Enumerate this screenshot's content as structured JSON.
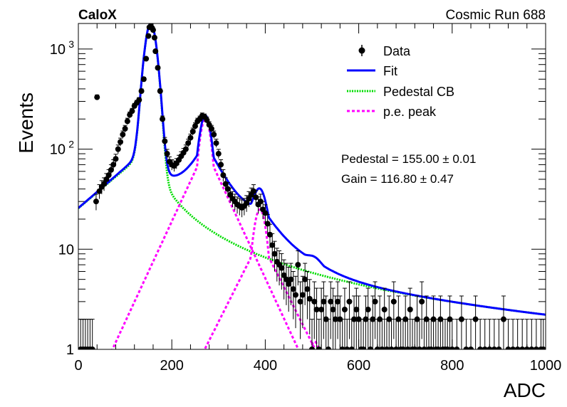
{
  "chart_data": {
    "type": "scatter",
    "experiment": "CaloX",
    "run_label": "Cosmic Run 688",
    "xlabel": "ADC",
    "ylabel": "Events",
    "xlim": [
      0,
      1000
    ],
    "ylim": [
      1,
      1800
    ],
    "yscale": "log",
    "x_ticks": [
      0,
      200,
      400,
      600,
      800,
      1000
    ],
    "y_ticks": [
      {
        "value": 1,
        "label": "1"
      },
      {
        "value": 10,
        "label": "10"
      },
      {
        "value": 100,
        "label": "10",
        "exp": "2"
      },
      {
        "value": 1000,
        "label": "10",
        "exp": "3"
      }
    ],
    "legend": [
      {
        "key": "data",
        "label": "Data"
      },
      {
        "key": "fit",
        "label": "Fit"
      },
      {
        "key": "pedestal",
        "label": "Pedestal CB"
      },
      {
        "key": "pe",
        "label": "p.e. peak"
      }
    ],
    "legend_position": "top-right",
    "results": [
      {
        "label": "Pedestal = 155.00",
        "pm": "±",
        "err": "0.01"
      },
      {
        "label": "Gain = 116.80",
        "pm": "±",
        "err": "0.47"
      }
    ],
    "colors": {
      "data": "#000000",
      "fit": "#0000ff",
      "pedestal": "#00dd00",
      "pe": "#ff00ff"
    },
    "fit_params": {
      "pedestal_mean": 155.0,
      "pedestal_sigma": 11.5,
      "pedestal_amp": 1700,
      "gain": 116.8,
      "peaks": [
        {
          "mean": 271.8,
          "sigma": 12.0,
          "amp": 200
        },
        {
          "mean": 388.6,
          "sigma": 13.0,
          "amp": 25
        },
        {
          "mean": 505.4,
          "sigma": 14.0,
          "amp": 1.2
        }
      ]
    },
    "data_points": [
      [
        5,
        1
      ],
      [
        10,
        1
      ],
      [
        15,
        1
      ],
      [
        20,
        1
      ],
      [
        25,
        1
      ],
      [
        30,
        1
      ],
      [
        38,
        30
      ],
      [
        40,
        330
      ],
      [
        45,
        38
      ],
      [
        50,
        42
      ],
      [
        55,
        45
      ],
      [
        60,
        50
      ],
      [
        65,
        55
      ],
      [
        70,
        62
      ],
      [
        75,
        70
      ],
      [
        80,
        80
      ],
      [
        85,
        100
      ],
      [
        90,
        118
      ],
      [
        95,
        140
      ],
      [
        100,
        160
      ],
      [
        105,
        190
      ],
      [
        110,
        220
      ],
      [
        115,
        240
      ],
      [
        120,
        270
      ],
      [
        125,
        290
      ],
      [
        130,
        310
      ],
      [
        135,
        380
      ],
      [
        140,
        500
      ],
      [
        145,
        800
      ],
      [
        150,
        1350
      ],
      [
        152,
        1650
      ],
      [
        155,
        1700
      ],
      [
        158,
        1620
      ],
      [
        160,
        1550
      ],
      [
        163,
        1300
      ],
      [
        165,
        950
      ],
      [
        170,
        650
      ],
      [
        175,
        380
      ],
      [
        180,
        200
      ],
      [
        185,
        120
      ],
      [
        190,
        90
      ],
      [
        195,
        75
      ],
      [
        200,
        70
      ],
      [
        205,
        68
      ],
      [
        210,
        72
      ],
      [
        215,
        78
      ],
      [
        220,
        85
      ],
      [
        225,
        92
      ],
      [
        230,
        100
      ],
      [
        235,
        115
      ],
      [
        240,
        130
      ],
      [
        245,
        150
      ],
      [
        250,
        170
      ],
      [
        255,
        190
      ],
      [
        260,
        200
      ],
      [
        265,
        215
      ],
      [
        270,
        210
      ],
      [
        275,
        195
      ],
      [
        280,
        175
      ],
      [
        285,
        160
      ],
      [
        290,
        140
      ],
      [
        295,
        115
      ],
      [
        300,
        90
      ],
      [
        305,
        70
      ],
      [
        310,
        55
      ],
      [
        315,
        45
      ],
      [
        320,
        40
      ],
      [
        325,
        35
      ],
      [
        330,
        32
      ],
      [
        335,
        30
      ],
      [
        340,
        28
      ],
      [
        345,
        27
      ],
      [
        350,
        26
      ],
      [
        355,
        27
      ],
      [
        360,
        29
      ],
      [
        365,
        32
      ],
      [
        370,
        35
      ],
      [
        375,
        38
      ],
      [
        380,
        33
      ],
      [
        385,
        28
      ],
      [
        390,
        30
      ],
      [
        395,
        25
      ],
      [
        400,
        23
      ],
      [
        405,
        18
      ],
      [
        410,
        14
      ],
      [
        415,
        11
      ],
      [
        420,
        9
      ],
      [
        425,
        7.5
      ],
      [
        430,
        7
      ],
      [
        435,
        6.5
      ],
      [
        440,
        5.5
      ],
      [
        445,
        5
      ],
      [
        450,
        4.5
      ],
      [
        455,
        5
      ],
      [
        460,
        4
      ],
      [
        465,
        3.5
      ],
      [
        470,
        7
      ],
      [
        475,
        3
      ],
      [
        480,
        3.5
      ],
      [
        485,
        5
      ],
      [
        490,
        4
      ],
      [
        495,
        3.2
      ],
      [
        500,
        1
      ],
      [
        505,
        3
      ],
      [
        510,
        2.5
      ],
      [
        515,
        1
      ],
      [
        520,
        2.5
      ],
      [
        525,
        3
      ],
      [
        530,
        2
      ],
      [
        535,
        1
      ],
      [
        540,
        3
      ],
      [
        545,
        2.5
      ],
      [
        550,
        2
      ],
      [
        555,
        3
      ],
      [
        560,
        2
      ],
      [
        565,
        1
      ],
      [
        570,
        2.5
      ],
      [
        575,
        1
      ],
      [
        580,
        3
      ],
      [
        585,
        1
      ],
      [
        590,
        2
      ],
      [
        595,
        2.5
      ],
      [
        600,
        2
      ],
      [
        605,
        1
      ],
      [
        610,
        1
      ],
      [
        615,
        2
      ],
      [
        620,
        2.5
      ],
      [
        625,
        1
      ],
      [
        630,
        2
      ],
      [
        635,
        3
      ],
      [
        640,
        1
      ],
      [
        645,
        2
      ],
      [
        650,
        1
      ],
      [
        655,
        2.5
      ],
      [
        660,
        1
      ],
      [
        665,
        2
      ],
      [
        670,
        1
      ],
      [
        675,
        3
      ],
      [
        680,
        1
      ],
      [
        685,
        2
      ],
      [
        690,
        1
      ],
      [
        695,
        1
      ],
      [
        700,
        2
      ],
      [
        705,
        1
      ],
      [
        710,
        2.5
      ],
      [
        715,
        1
      ],
      [
        720,
        1
      ],
      [
        725,
        2
      ],
      [
        730,
        1
      ],
      [
        735,
        3
      ],
      [
        740,
        1
      ],
      [
        745,
        2
      ],
      [
        750,
        1
      ],
      [
        755,
        1
      ],
      [
        760,
        2
      ],
      [
        765,
        1
      ],
      [
        770,
        1
      ],
      [
        775,
        2
      ],
      [
        780,
        1
      ],
      [
        785,
        1
      ],
      [
        790,
        1
      ],
      [
        795,
        2
      ],
      [
        800,
        1
      ],
      [
        810,
        1
      ],
      [
        820,
        2
      ],
      [
        830,
        1
      ],
      [
        840,
        1
      ],
      [
        850,
        2
      ],
      [
        860,
        1
      ],
      [
        870,
        1
      ],
      [
        880,
        1
      ],
      [
        890,
        1
      ],
      [
        900,
        1
      ],
      [
        910,
        2
      ],
      [
        920,
        1
      ],
      [
        930,
        1
      ],
      [
        940,
        1
      ],
      [
        950,
        1
      ],
      [
        960,
        1
      ],
      [
        970,
        1
      ],
      [
        980,
        1
      ],
      [
        990,
        1
      ],
      [
        995,
        1
      ]
    ]
  }
}
